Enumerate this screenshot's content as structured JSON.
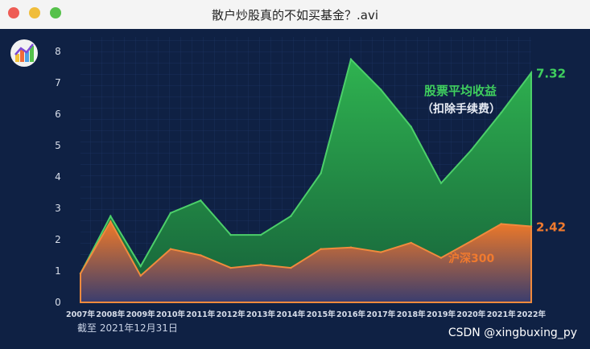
{
  "window": {
    "title": "散户炒股真的不如买基金？.avi",
    "traffic_colors": {
      "close": "#ee5c55",
      "minimize": "#f0bd3a",
      "maximize": "#55c14a"
    }
  },
  "footnote": "截至 2021年12月31日",
  "watermark": "CSDN @xingbuxing_py",
  "chart_data": {
    "type": "area",
    "categories": [
      "2007年",
      "2008年",
      "2009年",
      "2010年",
      "2011年",
      "2012年",
      "2013年",
      "2014年",
      "2015年",
      "2016年",
      "2017年",
      "2018年",
      "2019年",
      "2020年",
      "2021年",
      "2022年"
    ],
    "yticks": [
      "0",
      "1",
      "2",
      "3",
      "4",
      "5",
      "6",
      "7",
      "8"
    ],
    "ylim": [
      0,
      8
    ],
    "grid": true,
    "series": [
      {
        "name": "股票平均收益",
        "subtitle": "（扣除手续费）",
        "end_label": "7.32",
        "color": "#2fae4f",
        "values": [
          0.92,
          2.75,
          1.15,
          2.85,
          3.25,
          2.15,
          2.15,
          2.75,
          4.12,
          7.75,
          6.78,
          5.6,
          3.8,
          4.85,
          6.05,
          7.32
        ]
      },
      {
        "name": "沪深300",
        "end_label": "2.42",
        "color": "#e8772e",
        "values": [
          0.92,
          2.58,
          0.85,
          1.7,
          1.5,
          1.1,
          1.2,
          1.1,
          1.7,
          1.75,
          1.6,
          1.9,
          1.42,
          1.95,
          2.5,
          2.42
        ]
      }
    ]
  }
}
